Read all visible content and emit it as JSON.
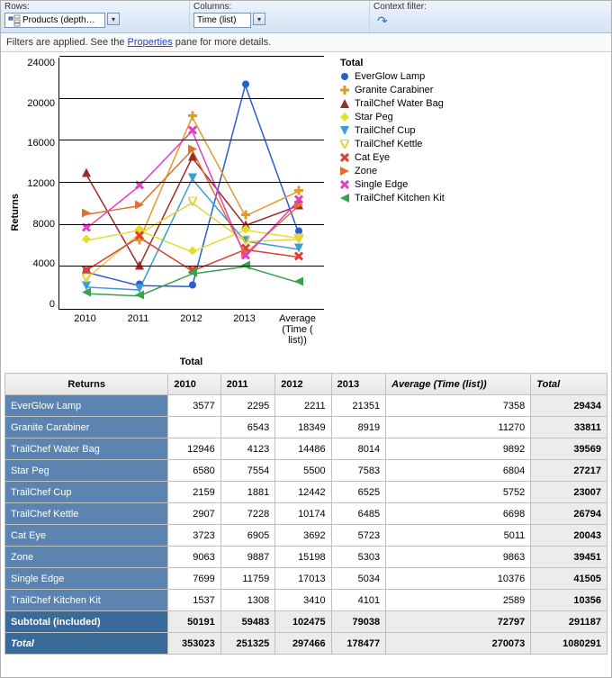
{
  "toolbar": {
    "rows_label": "Rows:",
    "rows_value": "Products (depth…",
    "columns_label": "Columns:",
    "columns_value": "Time (list)",
    "context_label": "Context filter:"
  },
  "filter_message": {
    "prefix": "Filters are applied. See the ",
    "link": "Properties",
    "suffix": " pane for more details."
  },
  "chart": {
    "type": "line",
    "ylabel": "Returns",
    "xlabel": "Total",
    "legend_title": "Total",
    "ylim": [
      0,
      24000
    ],
    "ytick_step": 4000,
    "yticks": [
      "24000",
      "20000",
      "16000",
      "12000",
      "8000",
      "4000",
      "0"
    ],
    "categories": [
      "2010",
      "2011",
      "2012",
      "2013",
      "Average\n(Time (\nlist))"
    ],
    "series": [
      {
        "name": "EverGlow Lamp",
        "color": "#2a5dcf",
        "marker": "circle",
        "values": [
          3577,
          2295,
          2211,
          21351,
          7358
        ]
      },
      {
        "name": "Granite Carabiner",
        "color": "#e09a2a",
        "marker": "plus",
        "values": [
          null,
          6543,
          18349,
          8919,
          11270
        ]
      },
      {
        "name": "TrailChef Water Bag",
        "color": "#9e2a2a",
        "marker": "triangle",
        "values": [
          12946,
          4123,
          14486,
          8014,
          9892
        ]
      },
      {
        "name": "Star Peg",
        "color": "#e0e02a",
        "marker": "diamond",
        "values": [
          6580,
          7554,
          5500,
          7583,
          6804
        ]
      },
      {
        "name": "TrailChef Cup",
        "color": "#3a9dd5",
        "marker": "tri-down",
        "values": [
          2159,
          1881,
          12442,
          6525,
          5752
        ]
      },
      {
        "name": "TrailChef Kettle",
        "color": "#e6d040",
        "marker": "tri-down-open",
        "values": [
          2907,
          7228,
          10174,
          6485,
          6698
        ]
      },
      {
        "name": "Cat Eye",
        "color": "#e04030",
        "marker": "x",
        "values": [
          3723,
          6905,
          3692,
          5723,
          5011
        ]
      },
      {
        "name": "Zone",
        "color": "#e07030",
        "marker": "tri-right",
        "values": [
          9063,
          9887,
          15198,
          5303,
          9863
        ]
      },
      {
        "name": "Single Edge",
        "color": "#e040c0",
        "marker": "x",
        "values": [
          7699,
          11759,
          17013,
          5034,
          10376
        ]
      },
      {
        "name": "TrailChef Kitchen Kit",
        "color": "#3aa050",
        "marker": "tri-left",
        "values": [
          1537,
          1308,
          3410,
          4101,
          2589
        ]
      }
    ],
    "background_color": "#ffffff",
    "gridline_color": "#000000",
    "tick_fontsize": 11,
    "label_fontsize": 11,
    "legend_fontsize": 11
  },
  "table": {
    "corner": "Returns",
    "columns": [
      "2010",
      "2011",
      "2012",
      "2013",
      "Average (Time (list))",
      "Total"
    ],
    "rows": [
      {
        "label": "EverGlow Lamp",
        "cells": [
          "3577",
          "2295",
          "2211",
          "21351",
          "7358",
          "29434"
        ]
      },
      {
        "label": "Granite Carabiner",
        "cells": [
          "",
          "6543",
          "18349",
          "8919",
          "11270",
          "33811"
        ]
      },
      {
        "label": "TrailChef Water Bag",
        "cells": [
          "12946",
          "4123",
          "14486",
          "8014",
          "9892",
          "39569"
        ]
      },
      {
        "label": "Star Peg",
        "cells": [
          "6580",
          "7554",
          "5500",
          "7583",
          "6804",
          "27217"
        ]
      },
      {
        "label": "TrailChef Cup",
        "cells": [
          "2159",
          "1881",
          "12442",
          "6525",
          "5752",
          "23007"
        ]
      },
      {
        "label": "TrailChef Kettle",
        "cells": [
          "2907",
          "7228",
          "10174",
          "6485",
          "6698",
          "26794"
        ]
      },
      {
        "label": "Cat Eye",
        "cells": [
          "3723",
          "6905",
          "3692",
          "5723",
          "5011",
          "20043"
        ]
      },
      {
        "label": "Zone",
        "cells": [
          "9063",
          "9887",
          "15198",
          "5303",
          "9863",
          "39451"
        ]
      },
      {
        "label": "Single Edge",
        "cells": [
          "7699",
          "11759",
          "17013",
          "5034",
          "10376",
          "41505"
        ]
      },
      {
        "label": "TrailChef Kitchen Kit",
        "cells": [
          "1537",
          "1308",
          "3410",
          "4101",
          "2589",
          "10356"
        ]
      }
    ],
    "subtotal": {
      "label": "Subtotal (included)",
      "cells": [
        "50191",
        "59483",
        "102475",
        "79038",
        "72797",
        "291187"
      ]
    },
    "grand": {
      "label": "Total",
      "cells": [
        "353023",
        "251325",
        "297466",
        "178477",
        "270073",
        "1080291"
      ]
    }
  }
}
